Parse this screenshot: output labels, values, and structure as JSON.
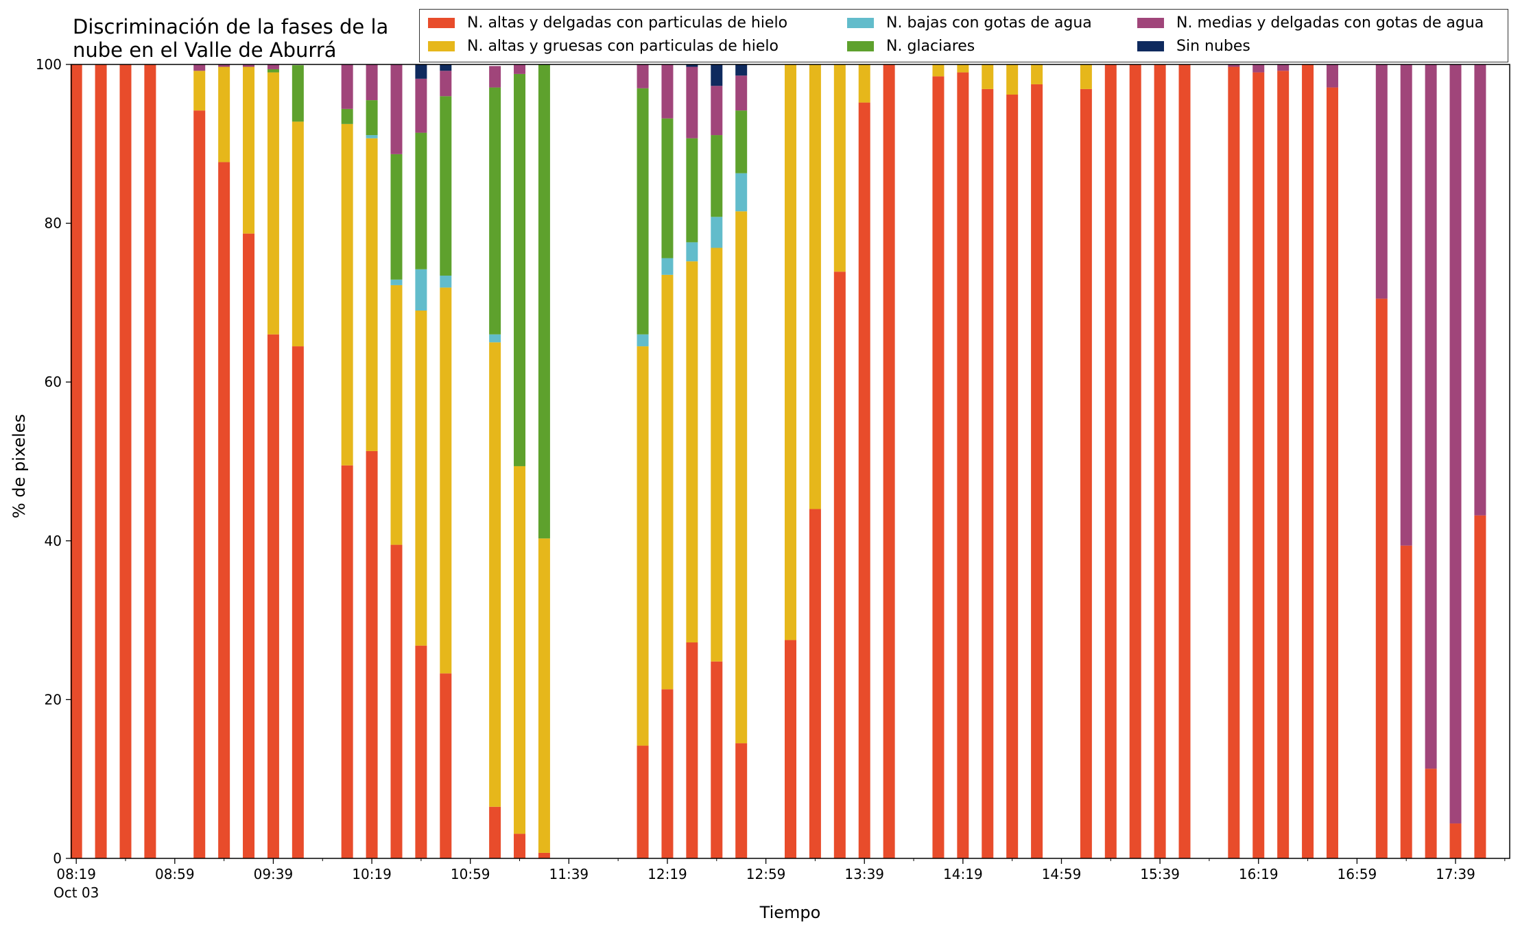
{
  "chart_data": {
    "type": "bar",
    "stacked": true,
    "title_lines": [
      "Discriminación de la fases de la",
      "nube en el Valle de Aburrá"
    ],
    "xlabel": "Tiempo",
    "ylabel": "% de pixeles",
    "ylim": [
      0,
      100
    ],
    "yticks": [
      0,
      20,
      40,
      60,
      80,
      100
    ],
    "xlim_minutes_after_0819": [
      -2,
      582
    ],
    "xticks": [
      {
        "label": "08:19",
        "sublabel": "Oct 03"
      },
      {
        "label": "08:59",
        "sublabel": ""
      },
      {
        "label": "09:39",
        "sublabel": ""
      },
      {
        "label": "10:19",
        "sublabel": ""
      },
      {
        "label": "10:59",
        "sublabel": ""
      },
      {
        "label": "11:39",
        "sublabel": ""
      },
      {
        "label": "12:19",
        "sublabel": ""
      },
      {
        "label": "12:59",
        "sublabel": ""
      },
      {
        "label": "13:39",
        "sublabel": ""
      },
      {
        "label": "14:19",
        "sublabel": ""
      },
      {
        "label": "14:59",
        "sublabel": ""
      },
      {
        "label": "15:39",
        "sublabel": ""
      },
      {
        "label": "16:19",
        "sublabel": ""
      },
      {
        "label": "16:59",
        "sublabel": ""
      },
      {
        "label": "17:39",
        "sublabel": ""
      }
    ],
    "legend_position": "top-right",
    "grid": false,
    "series": [
      {
        "name": "N. altas y delgadas con particulas de hielo",
        "color": "#e84c2b",
        "values": [
          100,
          100,
          100,
          100,
          94.2,
          87.7,
          78.7,
          66,
          64.5,
          49.5,
          51.3,
          39.5,
          26.8,
          23.3,
          6.5,
          3.1,
          0.7,
          14.2,
          21.3,
          27.2,
          24.8,
          14.5,
          27.5,
          44,
          73.9,
          95.2,
          100,
          98.5,
          99,
          96.9,
          96.2,
          97.5,
          96.9,
          100,
          100,
          100,
          100,
          99.7,
          99,
          99.2,
          100,
          97.1,
          70.5,
          39.4,
          11.3,
          4.4,
          43.2
        ]
      },
      {
        "name": "N. altas y gruesas con particulas de hielo",
        "color": "#e6b71b",
        "values": [
          0,
          0,
          0,
          0,
          5,
          12,
          21,
          33,
          28.3,
          43,
          39.4,
          32.7,
          42.2,
          48.6,
          58.5,
          46.3,
          39.6,
          50.3,
          52.2,
          48,
          52.1,
          67,
          72.5,
          56,
          26.1,
          4.8,
          0,
          1.5,
          1,
          3.1,
          3.8,
          2.5,
          3.1,
          0,
          0,
          0,
          0,
          0,
          0,
          0,
          0,
          0,
          0,
          0,
          0,
          0,
          0
        ]
      },
      {
        "name": "N. bajas con gotas de agua",
        "color": "#62bccb",
        "values": [
          0,
          0,
          0,
          0,
          0,
          0,
          0,
          0,
          0,
          0,
          0.4,
          0.7,
          5.2,
          1.5,
          1,
          0,
          0,
          1.5,
          2.1,
          2.4,
          3.9,
          4.8,
          0,
          0,
          0,
          0,
          0,
          0,
          0,
          0,
          0,
          0,
          0,
          0,
          0,
          0,
          0,
          0,
          0,
          0,
          0,
          0,
          0,
          0,
          0,
          0,
          0
        ]
      },
      {
        "name": "N. glaciares",
        "color": "#5ea12d",
        "values": [
          0,
          0,
          0,
          0,
          0,
          0,
          0,
          0.4,
          7.1,
          1.9,
          4.4,
          15.8,
          17.2,
          22.6,
          31.1,
          49.4,
          59.7,
          31,
          17.6,
          13.1,
          10.3,
          7.9,
          0,
          0,
          0,
          0,
          0,
          0,
          0,
          0,
          0,
          0,
          0,
          0,
          0,
          0,
          0,
          0,
          0,
          0,
          0,
          0,
          0,
          0,
          0,
          0,
          0
        ]
      },
      {
        "name": "N. medias y delgadas con gotas de agua",
        "color": "#a0457a",
        "values": [
          0,
          0,
          0,
          0,
          0.8,
          0.3,
          0.3,
          0.6,
          0,
          5.6,
          4.5,
          11.3,
          6.8,
          3.2,
          2.7,
          1.2,
          0,
          3,
          6.8,
          9,
          6.2,
          4.4,
          0,
          0,
          0,
          0,
          0,
          0,
          0,
          0,
          0,
          0,
          0,
          0,
          0,
          0,
          0,
          0.3,
          1,
          0.8,
          0,
          2.9,
          29.5,
          60.6,
          88.7,
          95.6,
          56.8
        ]
      },
      {
        "name": "Sin nubes",
        "color": "#0f2a5e",
        "values": [
          0,
          0,
          0,
          0,
          0,
          0,
          0,
          0,
          0,
          0,
          0,
          0,
          1.8,
          0.8,
          0,
          0,
          0,
          0,
          0,
          0.3,
          2.7,
          1.4,
          0,
          0,
          0,
          0,
          0,
          0,
          0,
          0,
          0,
          0,
          0,
          0,
          0,
          0,
          0,
          0,
          0,
          0,
          0,
          0,
          0,
          0,
          0,
          0,
          0
        ]
      }
    ],
    "x_minutes_after_0819": [
      0,
      10,
      20,
      30,
      50,
      60,
      70,
      80,
      90,
      110,
      120,
      130,
      140,
      150,
      170,
      180,
      190,
      230,
      240,
      250,
      260,
      270,
      290,
      300,
      310,
      320,
      330,
      350,
      360,
      370,
      380,
      390,
      410,
      420,
      430,
      440,
      450,
      470,
      480,
      490,
      500,
      510,
      530,
      540,
      550,
      560,
      570
    ]
  }
}
